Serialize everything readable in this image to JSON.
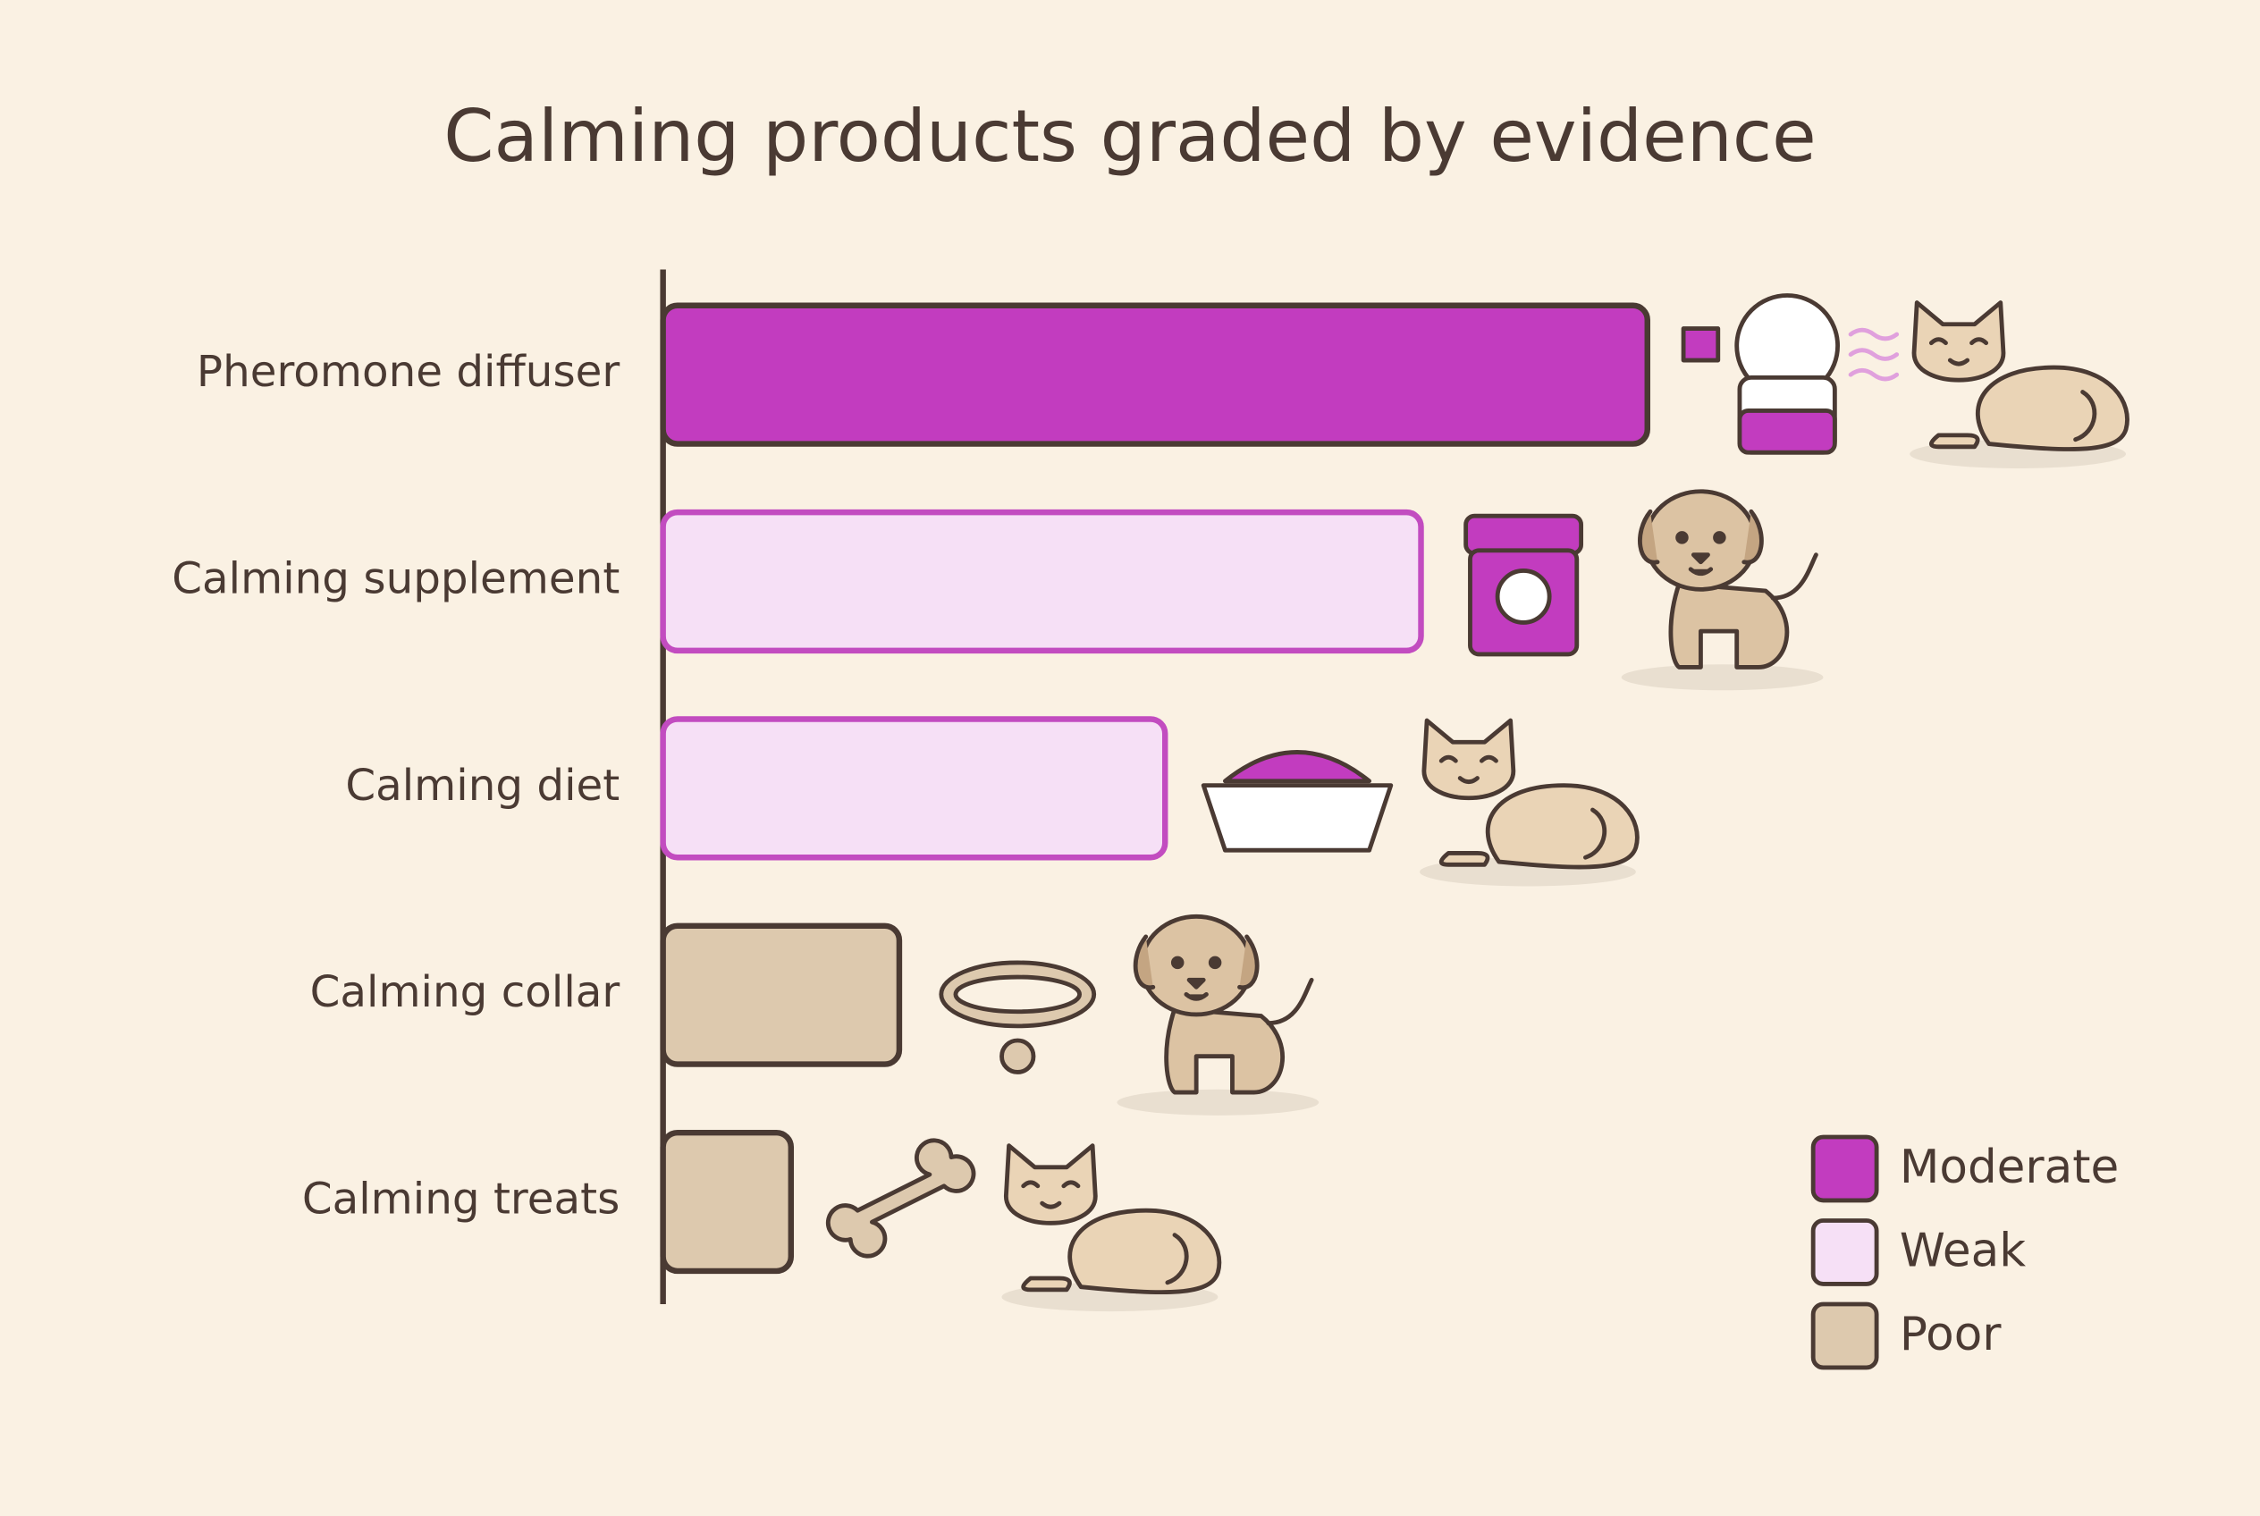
{
  "chart_data": {
    "type": "bar",
    "orientation": "horizontal",
    "title": "Calming products graded by evidence",
    "categories": [
      "Pheromone diffuser",
      "Calming supplement",
      "Calming diet",
      "Calming collar",
      "Calming treats"
    ],
    "series": [
      {
        "name": "Moderate",
        "color": "#c23cbf",
        "edge_color": "#4a3a33",
        "values": [
          100,
          null,
          null,
          null,
          null
        ]
      },
      {
        "name": "Weak",
        "color": "#f6e0f6",
        "edge_color": "#c24cc0",
        "values": [
          null,
          77,
          51,
          null,
          null
        ]
      },
      {
        "name": "Poor",
        "color": "#ddc9ae",
        "edge_color": "#4a3a33",
        "values": [
          null,
          null,
          null,
          24,
          13
        ]
      }
    ],
    "legend": "bottom-right",
    "grid": false
  }
}
